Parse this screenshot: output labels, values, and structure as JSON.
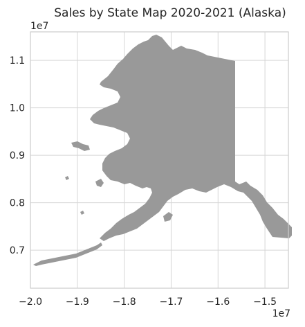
{
  "chart_data": {
    "type": "map",
    "title": "Sales by State Map 2020-2021 (Alaska)",
    "region": "Alaska",
    "fill_color": "#999999",
    "grid": true,
    "xlim": [
      -2.0,
      -1.45
    ],
    "ylim": [
      0.62,
      1.16
    ],
    "x_offset_label": "1e7",
    "y_offset_label": "1e7",
    "x_ticks": [
      {
        "value": -2.0,
        "label": "−2.0"
      },
      {
        "value": -1.9,
        "label": "−1.9"
      },
      {
        "value": -1.8,
        "label": "−1.8"
      },
      {
        "value": -1.7,
        "label": "−1.7"
      },
      {
        "value": -1.6,
        "label": "−1.6"
      },
      {
        "value": -1.5,
        "label": "−1.5"
      }
    ],
    "y_ticks": [
      {
        "value": 0.7,
        "label": "0.7"
      },
      {
        "value": 0.8,
        "label": "0.8"
      },
      {
        "value": 0.9,
        "label": "0.9"
      },
      {
        "value": 1.0,
        "label": "1.0"
      },
      {
        "value": 1.1,
        "label": "1.1"
      }
    ]
  }
}
